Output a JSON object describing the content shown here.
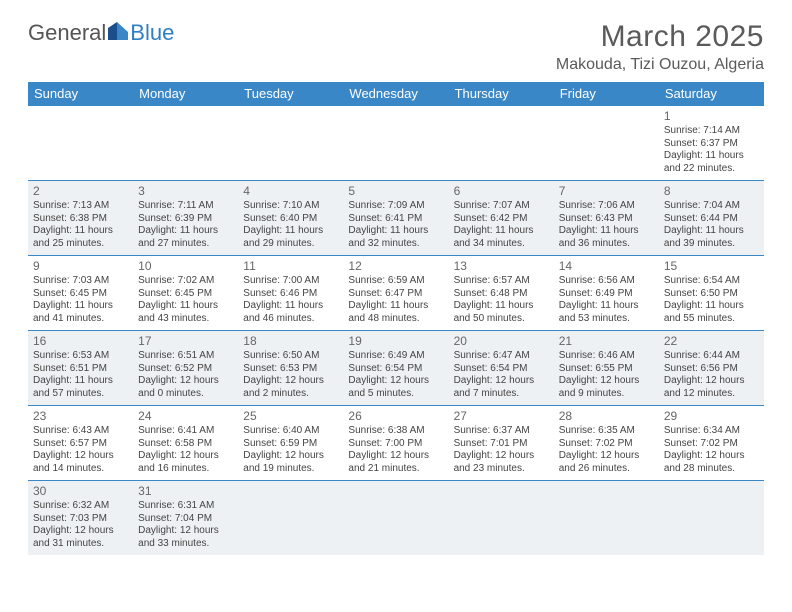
{
  "brand": {
    "part1": "General",
    "part2": "Blue"
  },
  "title": "March 2025",
  "location": "Makouda, Tizi Ouzou, Algeria",
  "colors": {
    "header_bg": "#3a87c8",
    "header_text": "#ffffff",
    "border": "#3a87c8",
    "shaded_bg": "#eef1f4",
    "text": "#444444",
    "title_text": "#5a5a5a"
  },
  "day_headers": [
    "Sunday",
    "Monday",
    "Tuesday",
    "Wednesday",
    "Thursday",
    "Friday",
    "Saturday"
  ],
  "weeks": [
    [
      {
        "blank": true
      },
      {
        "blank": true
      },
      {
        "blank": true
      },
      {
        "blank": true
      },
      {
        "blank": true
      },
      {
        "blank": true
      },
      {
        "num": "1",
        "sr": "Sunrise: 7:14 AM",
        "ss": "Sunset: 6:37 PM",
        "dl1": "Daylight: 11 hours",
        "dl2": "and 22 minutes."
      }
    ],
    [
      {
        "num": "2",
        "sr": "Sunrise: 7:13 AM",
        "ss": "Sunset: 6:38 PM",
        "dl1": "Daylight: 11 hours",
        "dl2": "and 25 minutes."
      },
      {
        "num": "3",
        "sr": "Sunrise: 7:11 AM",
        "ss": "Sunset: 6:39 PM",
        "dl1": "Daylight: 11 hours",
        "dl2": "and 27 minutes."
      },
      {
        "num": "4",
        "sr": "Sunrise: 7:10 AM",
        "ss": "Sunset: 6:40 PM",
        "dl1": "Daylight: 11 hours",
        "dl2": "and 29 minutes."
      },
      {
        "num": "5",
        "sr": "Sunrise: 7:09 AM",
        "ss": "Sunset: 6:41 PM",
        "dl1": "Daylight: 11 hours",
        "dl2": "and 32 minutes."
      },
      {
        "num": "6",
        "sr": "Sunrise: 7:07 AM",
        "ss": "Sunset: 6:42 PM",
        "dl1": "Daylight: 11 hours",
        "dl2": "and 34 minutes."
      },
      {
        "num": "7",
        "sr": "Sunrise: 7:06 AM",
        "ss": "Sunset: 6:43 PM",
        "dl1": "Daylight: 11 hours",
        "dl2": "and 36 minutes."
      },
      {
        "num": "8",
        "sr": "Sunrise: 7:04 AM",
        "ss": "Sunset: 6:44 PM",
        "dl1": "Daylight: 11 hours",
        "dl2": "and 39 minutes."
      }
    ],
    [
      {
        "num": "9",
        "sr": "Sunrise: 7:03 AM",
        "ss": "Sunset: 6:45 PM",
        "dl1": "Daylight: 11 hours",
        "dl2": "and 41 minutes."
      },
      {
        "num": "10",
        "sr": "Sunrise: 7:02 AM",
        "ss": "Sunset: 6:45 PM",
        "dl1": "Daylight: 11 hours",
        "dl2": "and 43 minutes."
      },
      {
        "num": "11",
        "sr": "Sunrise: 7:00 AM",
        "ss": "Sunset: 6:46 PM",
        "dl1": "Daylight: 11 hours",
        "dl2": "and 46 minutes."
      },
      {
        "num": "12",
        "sr": "Sunrise: 6:59 AM",
        "ss": "Sunset: 6:47 PM",
        "dl1": "Daylight: 11 hours",
        "dl2": "and 48 minutes."
      },
      {
        "num": "13",
        "sr": "Sunrise: 6:57 AM",
        "ss": "Sunset: 6:48 PM",
        "dl1": "Daylight: 11 hours",
        "dl2": "and 50 minutes."
      },
      {
        "num": "14",
        "sr": "Sunrise: 6:56 AM",
        "ss": "Sunset: 6:49 PM",
        "dl1": "Daylight: 11 hours",
        "dl2": "and 53 minutes."
      },
      {
        "num": "15",
        "sr": "Sunrise: 6:54 AM",
        "ss": "Sunset: 6:50 PM",
        "dl1": "Daylight: 11 hours",
        "dl2": "and 55 minutes."
      }
    ],
    [
      {
        "num": "16",
        "sr": "Sunrise: 6:53 AM",
        "ss": "Sunset: 6:51 PM",
        "dl1": "Daylight: 11 hours",
        "dl2": "and 57 minutes."
      },
      {
        "num": "17",
        "sr": "Sunrise: 6:51 AM",
        "ss": "Sunset: 6:52 PM",
        "dl1": "Daylight: 12 hours",
        "dl2": "and 0 minutes."
      },
      {
        "num": "18",
        "sr": "Sunrise: 6:50 AM",
        "ss": "Sunset: 6:53 PM",
        "dl1": "Daylight: 12 hours",
        "dl2": "and 2 minutes."
      },
      {
        "num": "19",
        "sr": "Sunrise: 6:49 AM",
        "ss": "Sunset: 6:54 PM",
        "dl1": "Daylight: 12 hours",
        "dl2": "and 5 minutes."
      },
      {
        "num": "20",
        "sr": "Sunrise: 6:47 AM",
        "ss": "Sunset: 6:54 PM",
        "dl1": "Daylight: 12 hours",
        "dl2": "and 7 minutes."
      },
      {
        "num": "21",
        "sr": "Sunrise: 6:46 AM",
        "ss": "Sunset: 6:55 PM",
        "dl1": "Daylight: 12 hours",
        "dl2": "and 9 minutes."
      },
      {
        "num": "22",
        "sr": "Sunrise: 6:44 AM",
        "ss": "Sunset: 6:56 PM",
        "dl1": "Daylight: 12 hours",
        "dl2": "and 12 minutes."
      }
    ],
    [
      {
        "num": "23",
        "sr": "Sunrise: 6:43 AM",
        "ss": "Sunset: 6:57 PM",
        "dl1": "Daylight: 12 hours",
        "dl2": "and 14 minutes."
      },
      {
        "num": "24",
        "sr": "Sunrise: 6:41 AM",
        "ss": "Sunset: 6:58 PM",
        "dl1": "Daylight: 12 hours",
        "dl2": "and 16 minutes."
      },
      {
        "num": "25",
        "sr": "Sunrise: 6:40 AM",
        "ss": "Sunset: 6:59 PM",
        "dl1": "Daylight: 12 hours",
        "dl2": "and 19 minutes."
      },
      {
        "num": "26",
        "sr": "Sunrise: 6:38 AM",
        "ss": "Sunset: 7:00 PM",
        "dl1": "Daylight: 12 hours",
        "dl2": "and 21 minutes."
      },
      {
        "num": "27",
        "sr": "Sunrise: 6:37 AM",
        "ss": "Sunset: 7:01 PM",
        "dl1": "Daylight: 12 hours",
        "dl2": "and 23 minutes."
      },
      {
        "num": "28",
        "sr": "Sunrise: 6:35 AM",
        "ss": "Sunset: 7:02 PM",
        "dl1": "Daylight: 12 hours",
        "dl2": "and 26 minutes."
      },
      {
        "num": "29",
        "sr": "Sunrise: 6:34 AM",
        "ss": "Sunset: 7:02 PM",
        "dl1": "Daylight: 12 hours",
        "dl2": "and 28 minutes."
      }
    ],
    [
      {
        "num": "30",
        "sr": "Sunrise: 6:32 AM",
        "ss": "Sunset: 7:03 PM",
        "dl1": "Daylight: 12 hours",
        "dl2": "and 31 minutes."
      },
      {
        "num": "31",
        "sr": "Sunrise: 6:31 AM",
        "ss": "Sunset: 7:04 PM",
        "dl1": "Daylight: 12 hours",
        "dl2": "and 33 minutes."
      },
      {
        "blank": true
      },
      {
        "blank": true
      },
      {
        "blank": true
      },
      {
        "blank": true
      },
      {
        "blank": true
      }
    ]
  ]
}
